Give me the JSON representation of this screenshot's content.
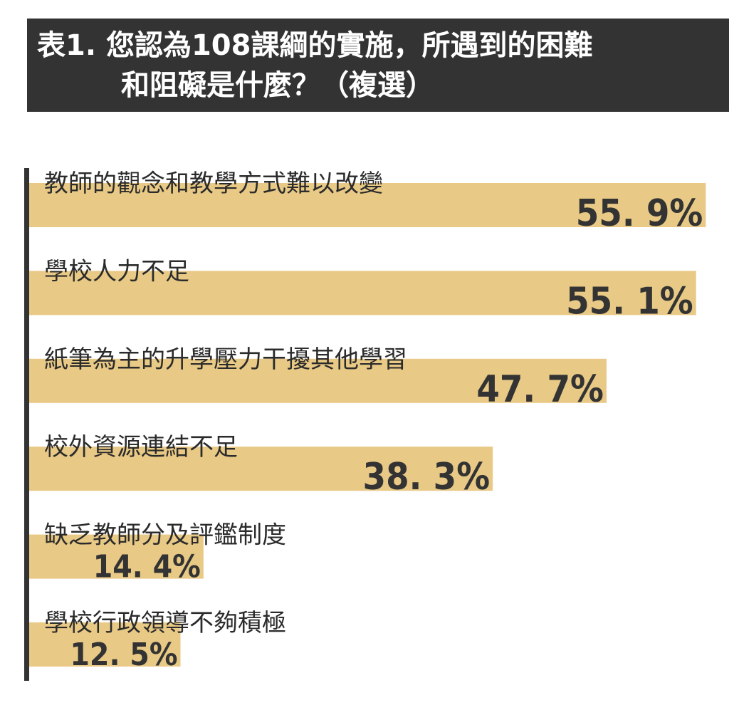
{
  "title": {
    "line1": "表1.  您認為108課綱的實施，所遇到的困難",
    "line2": "和阻礙是什麼？（複選）"
  },
  "colors": {
    "title_bg": "#333333",
    "title_text": "#ffffff",
    "bar": "#e8c985",
    "axis": "#333333",
    "text": "#333333"
  },
  "chart_data": {
    "type": "bar",
    "orientation": "horizontal",
    "unit": "%",
    "categories": [
      "教師的觀念和教學方式難以改變",
      "學校人力不足",
      "紙筆為主的升學壓力干擾其他學習",
      "校外資源連結不足",
      "缺乏教師分及評鑑制度",
      "學校行政領導不夠積極"
    ],
    "values": [
      55.9,
      55.1,
      47.7,
      38.3,
      14.4,
      12.5
    ],
    "value_labels": [
      "55. 9%",
      "55. 1%",
      "47. 7%",
      "38. 3%",
      "14. 4%",
      "12. 5%"
    ],
    "xlim": [
      0,
      56
    ]
  }
}
